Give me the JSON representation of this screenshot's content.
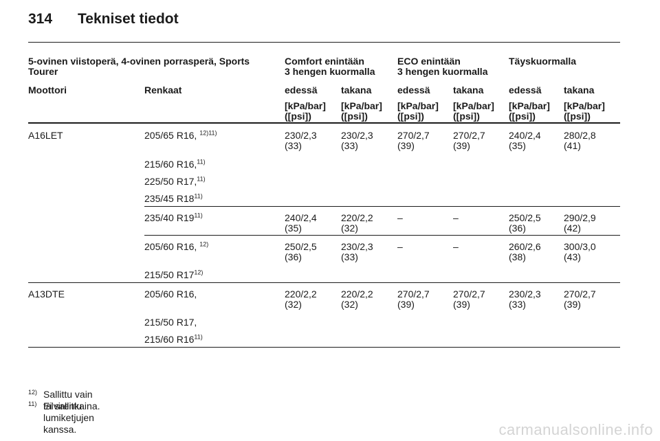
{
  "header": {
    "page_number": "314",
    "title": "Tekniset tiedot"
  },
  "table": {
    "group_headers": {
      "model": [
        "5-ovinen viistoperä, 4-ovinen porrasperä, Sports",
        "Tourer"
      ],
      "comfort": [
        "Comfort enintään",
        "3 hengen kuormalla"
      ],
      "eco": [
        "ECO enintään",
        "3 hengen kuormalla"
      ],
      "full": [
        "Täyskuormalla"
      ]
    },
    "col_headers": {
      "engine": "Moottori",
      "tyres": "Renkaat",
      "front": "edessä",
      "rear": "takana"
    },
    "unit": [
      "[kPa/bar]",
      "([psi])"
    ],
    "rows": [
      {
        "engine": "A16LET",
        "tyres": [
          "205/65 R16,",
          "215/60 R16,",
          "225/50 R17,",
          "235/45 R18"
        ],
        "tyre_notes": [
          "12)11)",
          "11)",
          "11)",
          "11)"
        ],
        "values": [
          [
            "230/2,3",
            "(33)"
          ],
          [
            "230/2,3",
            "(33)"
          ],
          [
            "270/2,7",
            "(39)"
          ],
          [
            "270/2,7",
            "(39)"
          ],
          [
            "240/2,4",
            "(35)"
          ],
          [
            "280/2,8",
            "(41)"
          ]
        ]
      },
      {
        "engine": "",
        "tyres": [
          "235/40 R19"
        ],
        "tyre_notes": [
          "11)"
        ],
        "values": [
          [
            "240/2,4",
            "(35)"
          ],
          [
            "220/2,2",
            "(32)"
          ],
          [
            "–",
            ""
          ],
          [
            "–",
            ""
          ],
          [
            "250/2,5",
            "(36)"
          ],
          [
            "290/2,9",
            "(42)"
          ]
        ]
      },
      {
        "engine": "",
        "tyres": [
          "205/60 R16,",
          "215/50 R17"
        ],
        "tyre_notes": [
          "12)",
          "12)"
        ],
        "values": [
          [
            "250/2,5",
            "(36)"
          ],
          [
            "230/2,3",
            "(33)"
          ],
          [
            "–",
            ""
          ],
          [
            "–",
            ""
          ],
          [
            "260/2,6",
            "(38)"
          ],
          [
            "300/3,0",
            "(43)"
          ]
        ]
      },
      {
        "engine": "A13DTE",
        "tyres": [
          "205/60 R16,",
          "215/50 R17,",
          "215/60 R16"
        ],
        "tyre_notes": [
          "",
          "",
          "11)"
        ],
        "values": [
          [
            "220/2,2",
            "(32)"
          ],
          [
            "220/2,2",
            "(32)"
          ],
          [
            "270/2,7",
            "(39)"
          ],
          [
            "270/2,7",
            "(39)"
          ],
          [
            "230/2,3",
            "(33)"
          ],
          [
            "270/2,7",
            "(39)"
          ]
        ]
      }
    ]
  },
  "footnotes": [
    {
      "mark": "12)",
      "text": "Sallittu vain talvirenkaina."
    },
    {
      "mark": "11)",
      "text": "Ei sallittu lumiketjujen kanssa."
    }
  ],
  "watermark": "carmanualsonline.info"
}
